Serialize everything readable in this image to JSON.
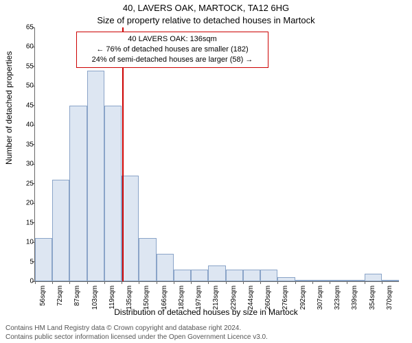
{
  "title_line1": "40, LAVERS OAK, MARTOCK, TA12 6HG",
  "title_line2": "Size of property relative to detached houses in Martock",
  "ylabel": "Number of detached properties",
  "xlabel": "Distribution of detached houses by size in Martock",
  "footer_line1": "Contains HM Land Registry data © Crown copyright and database right 2024.",
  "footer_line2": "Contains public sector information licensed under the Open Government Licence v3.0.",
  "chart": {
    "type": "histogram",
    "ylim": [
      0,
      65
    ],
    "ytick_step": 5,
    "categories": [
      "56sqm",
      "72sqm",
      "87sqm",
      "103sqm",
      "119sqm",
      "135sqm",
      "150sqm",
      "166sqm",
      "182sqm",
      "197sqm",
      "213sqm",
      "229sqm",
      "244sqm",
      "260sqm",
      "276sqm",
      "292sqm",
      "307sqm",
      "323sqm",
      "339sqm",
      "354sqm",
      "370sqm"
    ],
    "values": [
      11,
      26,
      45,
      54,
      45,
      27,
      11,
      7,
      3,
      3,
      4,
      3,
      3,
      3,
      1,
      0,
      0,
      0,
      0,
      2,
      0
    ],
    "bar_fill": "#dde6f2",
    "bar_stroke": "#8aa4c8",
    "background": "#ffffff",
    "axis_color": "#666666",
    "marker": {
      "bin_index_after": 5,
      "color": "#cc0000",
      "fraction_into_next": 0.08
    },
    "annotation": {
      "line1": "40 LAVERS OAK: 136sqm",
      "line2": "← 76% of detached houses are smaller (182)",
      "line3": "24% of semi-detached houses are larger (58) →",
      "border_color": "#cc0000"
    }
  }
}
